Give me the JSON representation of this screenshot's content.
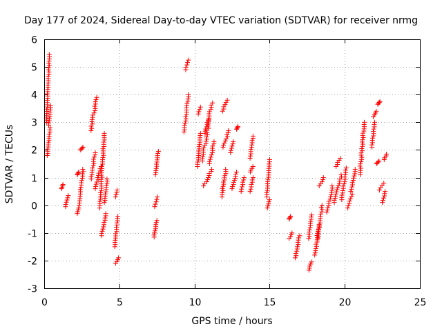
{
  "chart_data": {
    "type": "scatter",
    "title": "Day 177 of 2024, Sidereal Day-to-day VTEC variation (SDTVAR) for receiver nrmg",
    "xlabel": "GPS time / hours",
    "ylabel": "SDTVAR / TECUs",
    "xlim": [
      0,
      25
    ],
    "ylim": [
      -3,
      6
    ],
    "xticks": [
      0,
      5,
      10,
      15,
      20,
      25
    ],
    "yticks": [
      -3,
      -2,
      -1,
      0,
      1,
      2,
      3,
      4,
      5,
      6
    ],
    "grid": true,
    "marker": "+",
    "color": "#ff0000",
    "segments": [
      {
        "x": [
          0.15,
          0.35
        ],
        "y": [
          3.0,
          5.45
        ]
      },
      {
        "x": [
          0.2,
          0.4
        ],
        "y": [
          1.8,
          2.8
        ]
      },
      {
        "x": [
          0.3,
          0.45
        ],
        "y": [
          2.9,
          3.6
        ]
      },
      {
        "x": [
          1.15,
          1.25
        ],
        "y": [
          0.6,
          0.75
        ]
      },
      {
        "x": [
          1.4,
          1.6
        ],
        "y": [
          -0.05,
          0.35
        ]
      },
      {
        "x": [
          2.2,
          2.3
        ],
        "y": [
          -0.3,
          -0.1
        ]
      },
      {
        "x": [
          2.2,
          2.3
        ],
        "y": [
          1.1,
          1.2
        ]
      },
      {
        "x": [
          2.3,
          2.6
        ],
        "y": [
          0.0,
          1.3
        ]
      },
      {
        "x": [
          2.4,
          2.6
        ],
        "y": [
          2.0,
          2.1
        ]
      },
      {
        "x": [
          3.1,
          3.4
        ],
        "y": [
          0.95,
          1.9
        ]
      },
      {
        "x": [
          3.1,
          3.5
        ],
        "y": [
          2.7,
          3.9
        ]
      },
      {
        "x": [
          3.4,
          3.8
        ],
        "y": [
          0.6,
          1.4
        ]
      },
      {
        "x": [
          3.7,
          4.0
        ],
        "y": [
          -0.1,
          2.6
        ]
      },
      {
        "x": [
          3.8,
          4.1
        ],
        "y": [
          -1.1,
          -0.3
        ]
      },
      {
        "x": [
          4.0,
          4.2
        ],
        "y": [
          0.1,
          0.95
        ]
      },
      {
        "x": [
          4.75,
          4.85
        ],
        "y": [
          0.3,
          0.55
        ]
      },
      {
        "x": [
          4.7,
          4.9
        ],
        "y": [
          -1.5,
          -0.4
        ]
      },
      {
        "x": [
          4.75,
          4.95
        ],
        "y": [
          -2.1,
          -1.9
        ]
      },
      {
        "x": [
          7.3,
          7.5
        ],
        "y": [
          -1.15,
          -0.55
        ]
      },
      {
        "x": [
          7.35,
          7.55
        ],
        "y": [
          -0.05,
          0.3
        ]
      },
      {
        "x": [
          7.4,
          7.6
        ],
        "y": [
          1.1,
          1.95
        ]
      },
      {
        "x": [
          9.4,
          9.6
        ],
        "y": [
          4.9,
          5.25
        ]
      },
      {
        "x": [
          9.3,
          9.6
        ],
        "y": [
          2.65,
          4.0
        ]
      },
      {
        "x": [
          10.2,
          10.4
        ],
        "y": [
          1.4,
          2.6
        ]
      },
      {
        "x": [
          10.25,
          10.4
        ],
        "y": [
          3.3,
          3.55
        ]
      },
      {
        "x": [
          10.5,
          11.0
        ],
        "y": [
          1.6,
          3.1
        ]
      },
      {
        "x": [
          10.6,
          11.2
        ],
        "y": [
          0.7,
          1.3
        ]
      },
      {
        "x": [
          10.7,
          11.2
        ],
        "y": [
          2.6,
          3.7
        ]
      },
      {
        "x": [
          11.0,
          11.3
        ],
        "y": [
          1.5,
          2.3
        ]
      },
      {
        "x": [
          11.8,
          12.1
        ],
        "y": [
          0.3,
          1.3
        ]
      },
      {
        "x": [
          11.85,
          12.2
        ],
        "y": [
          3.4,
          3.8
        ]
      },
      {
        "x": [
          11.9,
          12.3
        ],
        "y": [
          2.1,
          2.7
        ]
      },
      {
        "x": [
          12.4,
          12.6
        ],
        "y": [
          1.9,
          2.3
        ]
      },
      {
        "x": [
          12.5,
          12.8
        ],
        "y": [
          0.6,
          1.2
        ]
      },
      {
        "x": [
          12.8,
          12.9
        ],
        "y": [
          2.75,
          2.85
        ]
      },
      {
        "x": [
          13.1,
          13.3
        ],
        "y": [
          0.5,
          1.0
        ]
      },
      {
        "x": [
          13.7,
          13.9
        ],
        "y": [
          0.5,
          1.0
        ]
      },
      {
        "x": [
          13.7,
          13.9
        ],
        "y": [
          1.2,
          1.4
        ]
      },
      {
        "x": [
          13.7,
          13.9
        ],
        "y": [
          1.7,
          2.5
        ]
      },
      {
        "x": [
          14.8,
          15.0
        ],
        "y": [
          0.3,
          1.65
        ]
      },
      {
        "x": [
          14.85,
          15.0
        ],
        "y": [
          -0.1,
          0.2
        ]
      },
      {
        "x": [
          16.3,
          16.4
        ],
        "y": [
          -0.5,
          -0.4
        ]
      },
      {
        "x": [
          16.3,
          16.5
        ],
        "y": [
          -1.2,
          -1.0
        ]
      },
      {
        "x": [
          16.7,
          17.0
        ],
        "y": [
          -1.9,
          -1.1
        ]
      },
      {
        "x": [
          17.6,
          17.8
        ],
        "y": [
          -2.35,
          -2.05
        ]
      },
      {
        "x": [
          17.6,
          17.8
        ],
        "y": [
          -1.2,
          -0.35
        ]
      },
      {
        "x": [
          18.0,
          18.3
        ],
        "y": [
          -1.8,
          -0.7
        ]
      },
      {
        "x": [
          18.2,
          18.5
        ],
        "y": [
          -1.2,
          0.0
        ]
      },
      {
        "x": [
          18.3,
          18.6
        ],
        "y": [
          0.7,
          1.0
        ]
      },
      {
        "x": [
          18.8,
          19.2
        ],
        "y": [
          -0.25,
          0.7
        ]
      },
      {
        "x": [
          19.4,
          19.7
        ],
        "y": [
          1.4,
          1.7
        ]
      },
      {
        "x": [
          19.3,
          19.8
        ],
        "y": [
          0.1,
          1.1
        ]
      },
      {
        "x": [
          19.8,
          20.1
        ],
        "y": [
          0.2,
          1.35
        ]
      },
      {
        "x": [
          20.2,
          20.5
        ],
        "y": [
          -0.1,
          0.4
        ]
      },
      {
        "x": [
          20.4,
          20.7
        ],
        "y": [
          0.5,
          1.3
        ]
      },
      {
        "x": [
          21.0,
          21.3
        ],
        "y": [
          1.1,
          3.0
        ]
      },
      {
        "x": [
          21.8,
          22.0
        ],
        "y": [
          2.1,
          3.0
        ]
      },
      {
        "x": [
          21.9,
          22.1
        ],
        "y": [
          3.2,
          3.4
        ]
      },
      {
        "x": [
          22.1,
          22.3
        ],
        "y": [
          1.5,
          1.6
        ]
      },
      {
        "x": [
          22.2,
          22.35
        ],
        "y": [
          3.65,
          3.75
        ]
      },
      {
        "x": [
          22.3,
          22.6
        ],
        "y": [
          0.55,
          0.8
        ]
      },
      {
        "x": [
          22.5,
          22.7
        ],
        "y": [
          0.1,
          0.5
        ]
      },
      {
        "x": [
          22.6,
          22.8
        ],
        "y": [
          1.65,
          1.85
        ]
      }
    ]
  }
}
